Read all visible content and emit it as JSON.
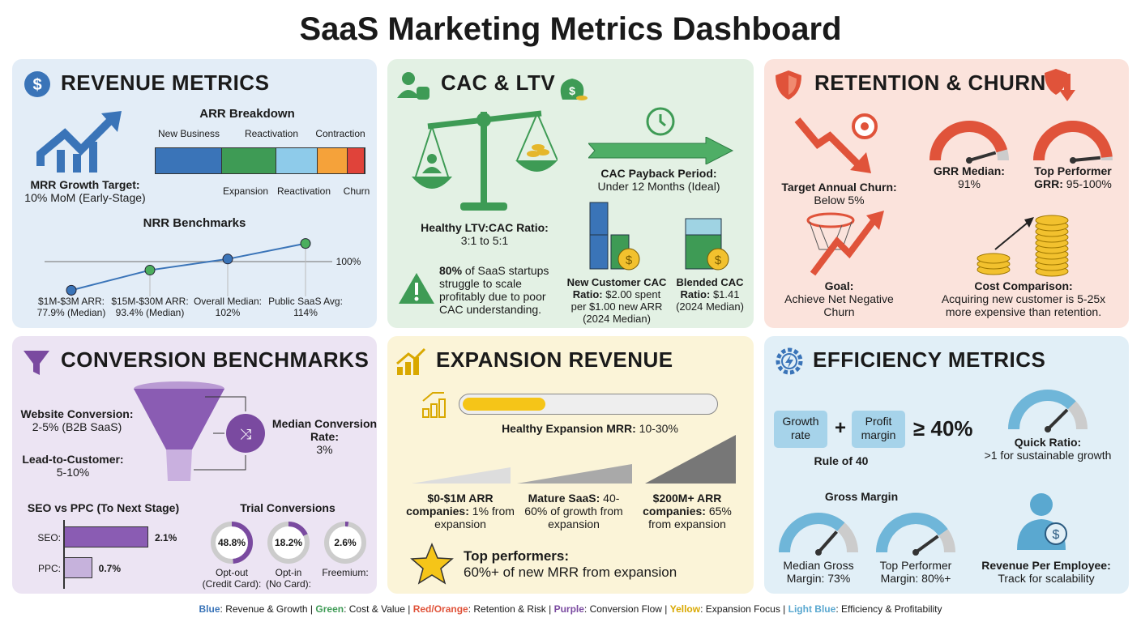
{
  "title": "SaaS Marketing Metrics Dashboard",
  "colors": {
    "blue": "#3a74b8",
    "green": "#3e9b55",
    "red": "#e0533a",
    "purple": "#7a4aa0",
    "yellow": "#f5c518",
    "light_blue": "#6fb6d9"
  },
  "revenue": {
    "heading": "REVENUE METRICS",
    "icon": "dollar-circle-icon",
    "mrr_label": "MRR Growth Target:",
    "mrr_value": "10% MoM (Early-Stage)",
    "arr_title": "ARR Breakdown",
    "arr_segments": [
      {
        "label": "New Business",
        "color": "#3a74b8"
      },
      {
        "label": "Expansion",
        "color": "#3e9b55"
      },
      {
        "label": "Reactivation",
        "color": "#8ecbea"
      },
      {
        "label": "Contraction",
        "color": "#f5a23a"
      },
      {
        "label": "Churn",
        "color": "#e0433a"
      }
    ],
    "arr_top_labels": [
      "New Business",
      "Reactivation",
      "Contraction"
    ],
    "arr_bottom_labels": [
      "Expansion",
      "Reactivation",
      "Churn"
    ],
    "nrr_title": "NRR Benchmarks",
    "nrr_ref": "100%",
    "nrr_points": [
      {
        "label": "$1M-$3M ARR:",
        "value": "77.9% (Median)",
        "v": 77.9
      },
      {
        "label": "$15M-$30M ARR:",
        "value": "93.4% (Median)",
        "v": 93.4
      },
      {
        "label": "Overall Median:",
        "value": "102%",
        "v": 102
      },
      {
        "label": "Public SaaS Avg:",
        "value": "114%",
        "v": 114
      }
    ]
  },
  "cac": {
    "heading": "CAC & LTV",
    "ltv_label": "Healthy LTV:CAC Ratio:",
    "ltv_value": "3:1 to 5:1",
    "payback_label": "CAC Payback Period:",
    "payback_value": "Under 12 Months (Ideal)",
    "warn_bold": "80%",
    "warn_text": " of SaaS startups struggle to scale profitably due to poor CAC understanding.",
    "new_label": "New Customer CAC",
    "new_bold": "Ratio:",
    "new_text": " $2.00 spent per $1.00 new ARR",
    "new_note": "(2024 Median)",
    "blend_label": "Blended CAC",
    "blend_bold": "Ratio:",
    "blend_text": " $1.41",
    "blend_note": "(2024 Median)"
  },
  "retention": {
    "heading": "RETENTION & CHURN",
    "churn_label": "Target Annual Churn:",
    "churn_value": "Below 5%",
    "grr_label": "GRR Median:",
    "grr_value": "91%",
    "grr_pct": 91,
    "top_label": "Top Performer",
    "top_bold2": "GRR:",
    "top_value": " 95-100%",
    "top_pct": 97,
    "goal_label": "Goal:",
    "goal_value": "Achieve Net Negative Churn",
    "cost_label": "Cost Comparison:",
    "cost_value": "Acquiring new customer is 5-25x more expensive than retention."
  },
  "conversion": {
    "heading": "CONVERSION BENCHMARKS",
    "website_label": "Website Conversion:",
    "website_value": "2-5% (B2B SaaS)",
    "lead_label": "Lead-to-Customer:",
    "lead_value": "5-10%",
    "median_label": "Median Conversion Rate:",
    "median_value": "3%",
    "seo_title": "SEO vs PPC (To Next Stage)",
    "bars": [
      {
        "label": "SEO:",
        "value": "2.1%",
        "v": 2.1
      },
      {
        "label": "PPC:",
        "value": "0.7%",
        "v": 0.7
      }
    ],
    "trial_title": "Trial Conversions",
    "trials": [
      {
        "value": "48.8%",
        "v": 48.8,
        "l1": "Opt-out",
        "l2": "(Credit Card):"
      },
      {
        "value": "18.2%",
        "v": 18.2,
        "l1": "Opt-in",
        "l2": "(No Card):"
      },
      {
        "value": "2.6%",
        "v": 2.6,
        "l1": "Freemium:",
        "l2": ""
      }
    ]
  },
  "expansion": {
    "heading": "EXPANSION REVENUE",
    "healthy_label": "Healthy Expansion MRR:",
    "healthy_value": " 10-30%",
    "progress_pct": 30,
    "stages": [
      {
        "bold": "$0-$1M ARR companies:",
        "text": " 1% from expansion"
      },
      {
        "bold": "Mature SaaS:",
        "text": " 40-60% of growth from expansion"
      },
      {
        "bold": "$200M+ ARR companies:",
        "text": " 65% from expansion"
      }
    ],
    "top_label": "Top performers:",
    "top_value": "60%+ of new MRR from expansion"
  },
  "efficiency": {
    "heading": "EFFICIENCY METRICS",
    "growth": "Growth rate",
    "profit": "Profit margin",
    "plus": "+",
    "ge": "≥ 40%",
    "rule": "Rule of 40",
    "quick_label": "Quick Ratio:",
    "quick_value": ">1 for sustainable growth",
    "gm_title": "Gross Margin",
    "median_gm": "Median Gross Margin: 73%",
    "median_pct": 73,
    "top_gm": "Top Performer Margin: 80%+",
    "top_pct": 80,
    "rpe_label": "Revenue Per Employee:",
    "rpe_value": "Track for scalability"
  },
  "legend": [
    {
      "k": "Blue",
      "v": "Revenue & Growth",
      "c": "#3a74b8"
    },
    {
      "k": "Green",
      "v": "Cost & Value",
      "c": "#3e9b55"
    },
    {
      "k": "Red/Orange",
      "v": "Retention & Risk",
      "c": "#e0533a"
    },
    {
      "k": "Purple",
      "v": "Conversion Flow",
      "c": "#7a4aa0"
    },
    {
      "k": "Yellow",
      "v": "Expansion Focus",
      "c": "#d9a800"
    },
    {
      "k": "Light Blue",
      "v": "Efficiency & Profitability",
      "c": "#5aa8d0"
    }
  ]
}
